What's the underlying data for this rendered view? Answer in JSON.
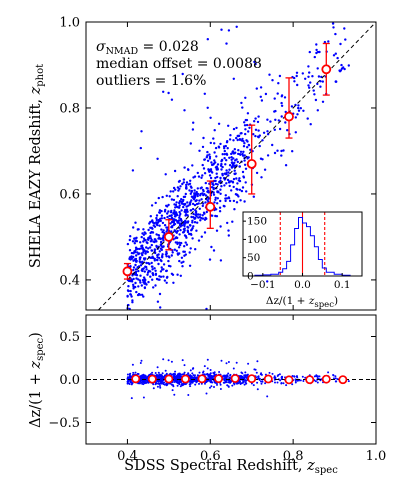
{
  "chart_data": [
    {
      "type": "scatter",
      "panel": "main",
      "xlabel": "",
      "ylabel": "SHELA EAZY Redshift, z_phot",
      "ylabel_main": "SHELA EAZY Redshift,",
      "ylabel_sym": "z",
      "ylabel_sub": "phot",
      "xlim": [
        0.3,
        1.0
      ],
      "ylim": [
        0.33,
        1.0
      ],
      "xticks": [
        "0.4",
        "0.6",
        "0.8",
        "1.0"
      ],
      "yticks": [
        "0.4",
        "0.6",
        "0.8",
        "1.0"
      ],
      "yticks_values": [
        0.4,
        0.6,
        0.8,
        1.0
      ],
      "one_to_one_line": true,
      "annotations": {
        "sigma_sym": "σ",
        "sigma_sub": "NMAD",
        "sigma_value": " = 0.028",
        "median_offset": "median offset = 0.0088",
        "outliers": "outliers = 1.6%"
      },
      "binned_medians": {
        "x": [
          0.4,
          0.5,
          0.6,
          0.7,
          0.79,
          0.88
        ],
        "y": [
          0.42,
          0.5,
          0.57,
          0.67,
          0.78,
          0.89
        ],
        "err_low": [
          0.018,
          0.03,
          0.05,
          0.07,
          0.05,
          0.06
        ],
        "err_high": [
          0.018,
          0.04,
          0.06,
          0.09,
          0.09,
          0.06
        ]
      },
      "scatter_color": "#0000ff",
      "median_color": "#ff0000"
    },
    {
      "type": "bar",
      "panel": "inset-histogram",
      "xlabel": "Δz/(1 + z_spec)",
      "xlabel_main": "Δz/(1 + ",
      "xlabel_sym": "z",
      "xlabel_sub": "spec",
      "xlabel_close": ")",
      "xlim": [
        -0.15,
        0.15
      ],
      "ylim": [
        0,
        175
      ],
      "xticks": [
        "−0.1",
        "0.0",
        "0.1"
      ],
      "xticks_values": [
        -0.1,
        0.0,
        0.1
      ],
      "yticks": [
        "0",
        "50",
        "100",
        "150"
      ],
      "yticks_values": [
        0,
        50,
        100,
        150
      ],
      "bin_edges": [
        -0.14,
        -0.12,
        -0.1,
        -0.08,
        -0.06,
        -0.05,
        -0.04,
        -0.03,
        -0.02,
        -0.01,
        0.0,
        0.01,
        0.02,
        0.03,
        0.04,
        0.05,
        0.06,
        0.08,
        0.1,
        0.12,
        0.14
      ],
      "counts": [
        0,
        2,
        3,
        5,
        10,
        20,
        40,
        85,
        130,
        160,
        145,
        135,
        110,
        80,
        45,
        22,
        10,
        5,
        2,
        0
      ],
      "vlines": [
        -0.056,
        0.0,
        0.056
      ],
      "vline_color": "#ff0000",
      "hist_color": "#0000ff"
    },
    {
      "type": "scatter",
      "panel": "residual",
      "xlabel": "SDSS Spectral Redshift, z_spec",
      "xlabel_main": "SDSS Spectral Redshift, ",
      "xlabel_sym": "z",
      "xlabel_sub": "spec",
      "ylabel": "Δz/(1 + z_spec)",
      "ylabel_main": "Δz/(1 + ",
      "ylabel_sym": "z",
      "ylabel_sub": "spec",
      "ylabel_close": ")",
      "xlim": [
        0.3,
        1.0
      ],
      "ylim": [
        -0.75,
        0.75
      ],
      "xticks": [
        "0.4",
        "0.6",
        "0.8",
        "1.0"
      ],
      "xticks_values": [
        0.4,
        0.6,
        0.8,
        1.0
      ],
      "yticks": [
        "0.5",
        "0.0",
        "−0.5"
      ],
      "yticks_values": [
        0.5,
        0.0,
        -0.5
      ],
      "zero_line": true,
      "binned_medians": {
        "x": [
          0.42,
          0.46,
          0.5,
          0.54,
          0.58,
          0.62,
          0.66,
          0.7,
          0.74,
          0.79,
          0.84,
          0.88,
          0.92
        ],
        "y": [
          0.008,
          0.005,
          0.006,
          0.006,
          0.008,
          0.01,
          0.012,
          0.01,
          0.006,
          -0.004,
          -0.002,
          0.004,
          -0.002
        ]
      }
    }
  ]
}
